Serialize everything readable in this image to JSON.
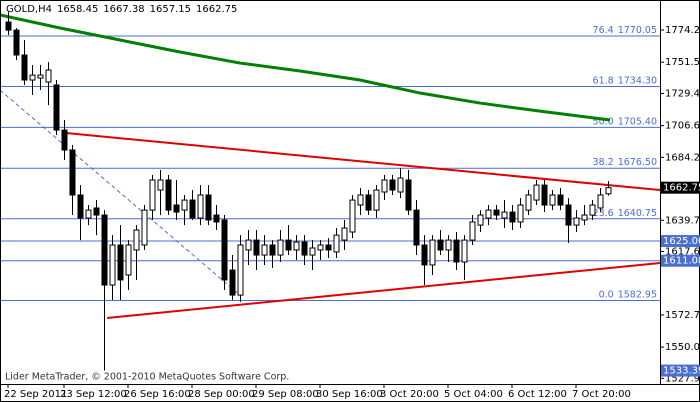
{
  "chart_data": {
    "type": "candlestick",
    "symbol": "GOLD,H4",
    "copyright": "Lider MetaTrader, © 2001-2010 MetaQuotes Software Corp.",
    "categories": [
      "22 Sep 2011",
      null,
      null,
      null,
      null,
      null,
      null,
      "23 Sep 12:00",
      null,
      null,
      null,
      null,
      null,
      null,
      null,
      "26 Sep 16:00",
      null,
      null,
      null,
      null,
      null,
      null,
      null,
      "28 Sep 00:00",
      null,
      null,
      null,
      null,
      null,
      null,
      null,
      "29 Sep 08:00",
      null,
      null,
      null,
      null,
      null,
      null,
      null,
      "30 Sep 16:00",
      null,
      null,
      null,
      null,
      null,
      null,
      null,
      "3 Oct 20:00",
      null,
      null,
      null,
      null,
      null,
      null,
      null,
      "5 Oct 04:00",
      null,
      null,
      null,
      null,
      null,
      null,
      null,
      "6 Oct 12:00",
      null,
      null,
      null,
      null,
      null,
      null,
      null,
      "7 Oct 20:00",
      null,
      null,
      null,
      null
    ],
    "open": [
      1779.9,
      1774.2,
      1756.6,
      1738.9,
      1740.3,
      1737.5,
      1735.4,
      1703.5,
      1689.4,
      1657.6,
      1641.3,
      1648.4,
      1643.4,
      1593.9,
      1622.2,
      1601.0,
      1618.7,
      1622.2,
      1646.9,
      1661.1,
      1668.2,
      1650.5,
      1646.9,
      1654.0,
      1641.3,
      1657.6,
      1643.4,
      1639.9,
      1604.5,
      1586.8,
      1618.7,
      1625.7,
      1615.1,
      1622.2,
      1615.1,
      1625.7,
      1618.7,
      1624.3,
      1615.1,
      1618.7,
      1622.2,
      1617.3,
      1625.7,
      1631.4,
      1650.5,
      1657.6,
      1646.9,
      1659.7,
      1668.2,
      1659.7,
      1668.2,
      1646.9,
      1622.2,
      1608.1,
      1625.7,
      1618.7,
      1625.7,
      1610.2,
      1625.7,
      1636.3,
      1641.3,
      1646.9,
      1641.3,
      1645.5,
      1638.5,
      1646.9,
      1654.0,
      1664.6,
      1650.5,
      1657.6,
      1650.5,
      1636.3,
      1639.9,
      1643.4,
      1648.4,
      1658.45
    ],
    "high": [
      1787.0,
      1775.7,
      1767.2,
      1749.5,
      1749.5,
      1751.6,
      1738.9,
      1710.6,
      1692.9,
      1664.6,
      1650.5,
      1654.0,
      1646.9,
      1629.2,
      1636.3,
      1625.7,
      1636.3,
      1650.5,
      1671.7,
      1675.3,
      1671.7,
      1668.2,
      1657.6,
      1661.1,
      1664.6,
      1664.6,
      1650.5,
      1643.4,
      1615.1,
      1629.2,
      1632.8,
      1632.8,
      1629.2,
      1625.7,
      1632.8,
      1636.3,
      1629.2,
      1629.2,
      1625.7,
      1625.7,
      1627.1,
      1634.2,
      1639.9,
      1657.6,
      1662.5,
      1661.1,
      1664.6,
      1671.7,
      1671.7,
      1676.7,
      1675.3,
      1654.0,
      1629.2,
      1629.2,
      1632.8,
      1629.2,
      1631.4,
      1629.2,
      1643.4,
      1646.9,
      1650.5,
      1650.5,
      1654.0,
      1650.5,
      1655.4,
      1661.1,
      1668.2,
      1668.2,
      1661.1,
      1662.5,
      1655.4,
      1646.9,
      1650.5,
      1654.0,
      1662.5,
      1667.38
    ],
    "low": [
      1770.7,
      1753.0,
      1735.4,
      1728.3,
      1731.8,
      1721.2,
      1700.0,
      1682.3,
      1643.4,
      1625.7,
      1636.3,
      1629.2,
      1533.39,
      1583.3,
      1583.3,
      1590.4,
      1597.5,
      1618.7,
      1639.9,
      1643.4,
      1643.4,
      1639.9,
      1636.3,
      1639.9,
      1636.3,
      1636.3,
      1632.8,
      1590.4,
      1583.3,
      1581.9,
      1608.1,
      1604.5,
      1608.1,
      1606.0,
      1610.2,
      1615.1,
      1611.6,
      1608.1,
      1604.5,
      1611.6,
      1613.0,
      1613.0,
      1618.7,
      1627.1,
      1643.4,
      1643.4,
      1641.3,
      1654.0,
      1657.6,
      1655.4,
      1643.4,
      1615.1,
      1593.9,
      1601.0,
      1615.1,
      1610.2,
      1604.5,
      1597.5,
      1622.2,
      1631.4,
      1636.3,
      1639.9,
      1634.2,
      1632.8,
      1634.2,
      1643.4,
      1650.5,
      1645.5,
      1646.9,
      1646.9,
      1623.6,
      1631.4,
      1636.3,
      1639.9,
      1645.5,
      1657.15
    ],
    "close": [
      1774.2,
      1756.6,
      1738.9,
      1742.4,
      1742.4,
      1746.0,
      1703.5,
      1689.4,
      1657.6,
      1641.3,
      1646.9,
      1643.4,
      1593.9,
      1622.2,
      1597.5,
      1622.2,
      1632.8,
      1646.9,
      1668.2,
      1668.2,
      1646.9,
      1645.5,
      1654.0,
      1641.3,
      1657.6,
      1639.9,
      1638.5,
      1597.5,
      1586.8,
      1622.2,
      1625.7,
      1615.1,
      1622.2,
      1615.1,
      1625.7,
      1618.7,
      1624.3,
      1615.1,
      1620.1,
      1622.2,
      1618.7,
      1629.2,
      1634.2,
      1654.0,
      1657.6,
      1646.9,
      1661.1,
      1668.2,
      1661.1,
      1669.6,
      1646.9,
      1622.2,
      1608.1,
      1625.7,
      1618.7,
      1625.7,
      1610.2,
      1625.7,
      1638.5,
      1643.4,
      1646.9,
      1643.4,
      1645.5,
      1638.5,
      1650.5,
      1657.6,
      1664.6,
      1650.5,
      1657.6,
      1650.5,
      1636.3,
      1641.3,
      1643.4,
      1650.5,
      1657.6,
      1662.75
    ],
    "bull_color": "#ffffff",
    "bear_color": "#000000",
    "ylim": [
      1523.9,
      1795.5
    ],
    "yticks": [
      1774.25,
      {
        "value": 1751.5,
        "label": "1751.50"
      },
      {
        "value": 1729.4,
        "label": "1729.40"
      },
      1706.65,
      1684.25,
      {
        "value": 1639.7,
        "label": "1639.70"
      },
      {
        "value": 1617.6,
        "label": "1617.60"
      },
      1572.75,
      {
        "value": 1550,
        "label": "1550.00"
      },
      {
        "value": 1527.9,
        "label": "1527.90"
      }
    ],
    "moving_average": {
      "color": "#008000",
      "x": [
        -1,
        6.5,
        14,
        21.5,
        29,
        36.5,
        44,
        51.5,
        59,
        66.5,
        75.25
      ],
      "values": [
        1784.9,
        1775.7,
        1767.2,
        1758.7,
        1750.9,
        1745.3,
        1738.9,
        1729.7,
        1722.6,
        1716.9,
        1710.6
      ]
    },
    "trendlines": [
      {
        "color": "#e00000",
        "dashed": false,
        "x": [
          7.25,
          81.5
        ],
        "y": [
          1701.4,
          1661.1
        ]
      },
      {
        "color": "#e00000",
        "dashed": false,
        "x": [
          12.4,
          81.5
        ],
        "y": [
          1570.6,
          1609.5
        ]
      },
      {
        "color": "#4a6fd0",
        "dashed": true,
        "x": [
          -1,
          29
        ],
        "y": [
          1731.8,
          1586.8
        ]
      }
    ],
    "fibo_color": "#4a6fd0",
    "fibo": [
      {
        "level": "76.4",
        "price": 1770.05
      },
      {
        "level": "61.8",
        "price": {
          "value": 1734.3,
          "label": "1734.30"
        }
      },
      {
        "level": "50.0",
        "price": {
          "value": 1705.4,
          "label": "1705.40"
        }
      },
      {
        "level": "38.2",
        "price": {
          "value": 1676.5,
          "label": "1676.50"
        }
      },
      {
        "level": "23.6",
        "price": 1640.75
      },
      {
        "level": "0.0",
        "price": 1582.95
      }
    ],
    "levels": [
      {
        "value": 1625,
        "label": "1625.00"
      },
      1611.08
    ]
  }
}
